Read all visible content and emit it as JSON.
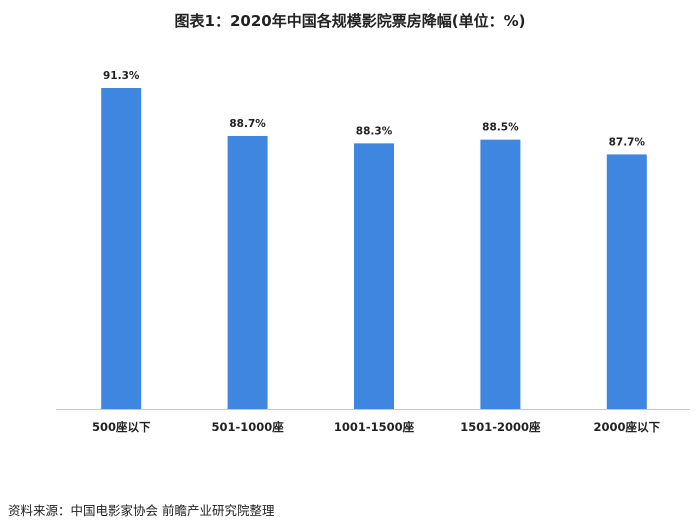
{
  "title": "图表1：2020年中国各规模影院票房降幅(单位：%)",
  "source": "资料来源：中国电影家协会 前瞻产业研究院整理",
  "colors": {
    "bar": "#3f86e0",
    "axis": "#c8c8c8",
    "text": "#222222"
  },
  "chart_data": {
    "type": "bar",
    "title": "图表1：2020年中国各规模影院票房降幅(单位：%)",
    "categories": [
      "500座以下",
      "501-1000座",
      "1001-1500座",
      "1501-2000座",
      "2000座以下"
    ],
    "values": [
      91.3,
      88.7,
      88.3,
      88.5,
      87.7
    ],
    "data_labels": [
      "91.3%",
      "88.7%",
      "88.3%",
      "88.5%",
      "87.7%"
    ],
    "ylim": [
      73.9,
      91.3
    ],
    "grid": false,
    "legend": "none"
  }
}
